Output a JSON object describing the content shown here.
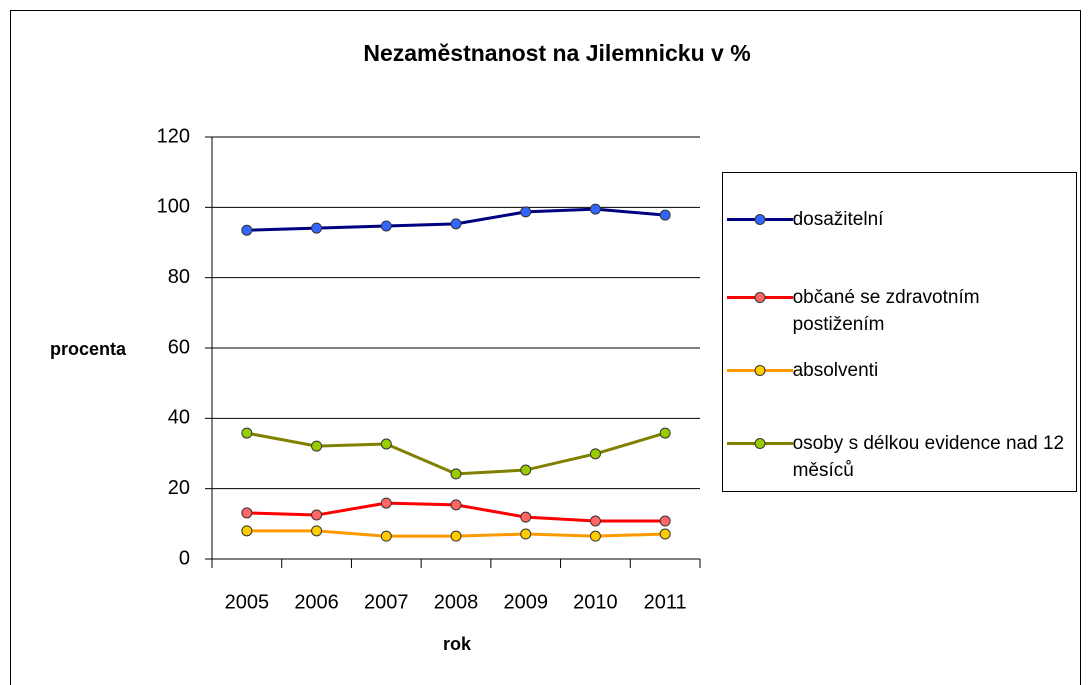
{
  "chart_data": {
    "type": "line",
    "title": "Nezaměstnanost na Jilemnicku v %",
    "x_label": "rok",
    "y_label": "procenta",
    "categories": [
      "2005",
      "2006",
      "2007",
      "2008",
      "2009",
      "2010",
      "2011"
    ],
    "series": [
      {
        "name": "dosažitelní",
        "color": "#000080",
        "marker_color": "#3366ff",
        "values": [
          93.5,
          94.1,
          94.7,
          95.3,
          98.7,
          99.5,
          97.8
        ]
      },
      {
        "name": "občané se zdravotním postižením",
        "color": "#ff0000",
        "marker_color": "#ff6666",
        "values": [
          13.1,
          12.5,
          15.9,
          15.4,
          11.9,
          10.8,
          10.8
        ]
      },
      {
        "name": "absolventi",
        "color": "#ff9900",
        "marker_color": "#ffcc00",
        "values": [
          8.0,
          8.0,
          6.5,
          6.5,
          7.1,
          6.5,
          7.1
        ]
      },
      {
        "name": "osoby s délkou evidence nad 12 měsíců",
        "color": "#808000",
        "marker_color": "#99cc00",
        "values": [
          35.8,
          32.1,
          32.7,
          24.2,
          25.3,
          29.9,
          35.8
        ]
      }
    ],
    "ylim": [
      0,
      120
    ],
    "yticks": [
      0,
      20,
      40,
      60,
      80,
      100,
      120
    ],
    "grid": true,
    "legend": "right"
  }
}
